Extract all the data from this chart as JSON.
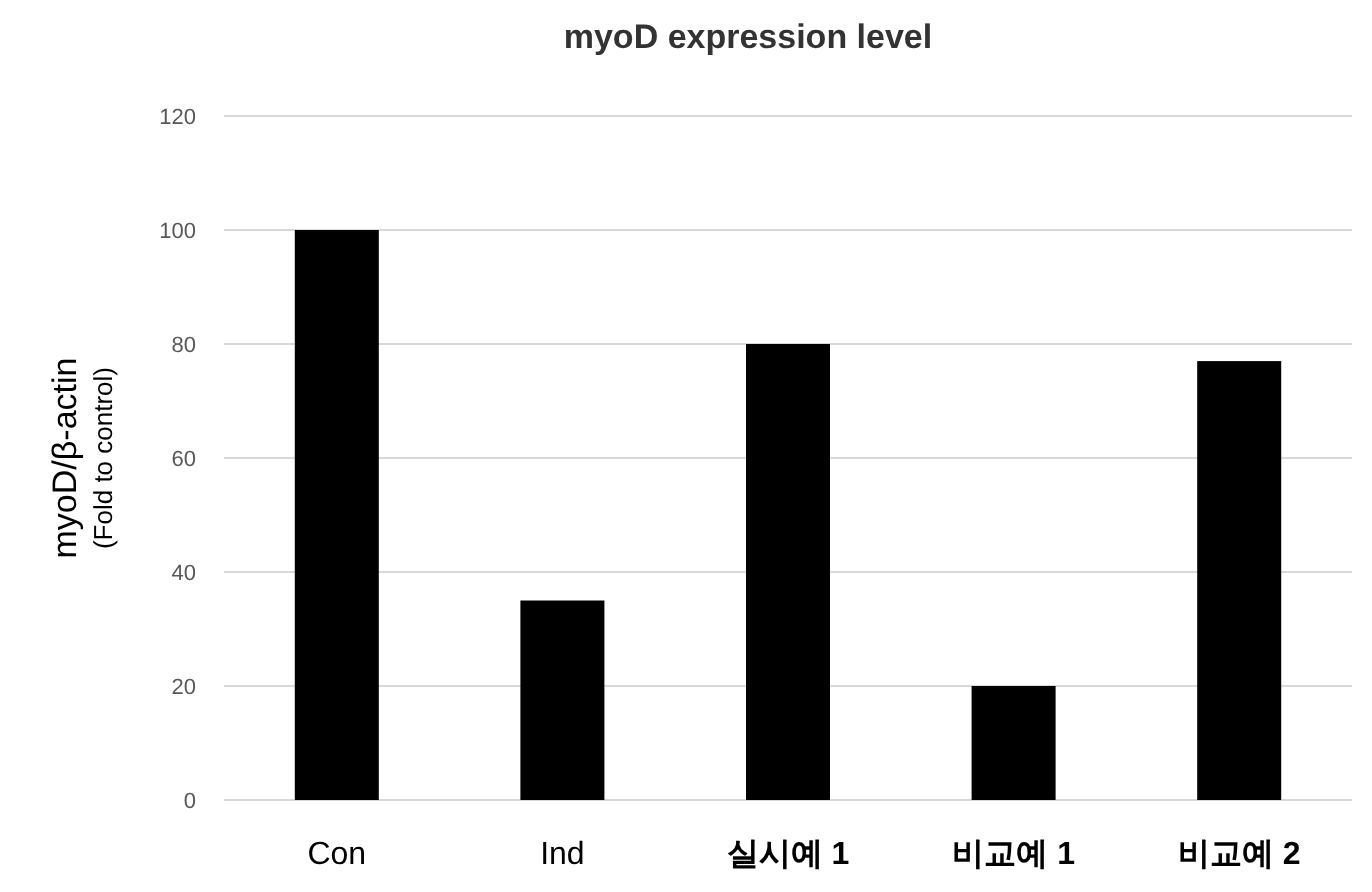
{
  "chart_data": {
    "type": "bar",
    "title": "myoD expression level",
    "ylabel": "myoD/β-actin\n(Fold to control)",
    "categories": [
      "Con",
      "Ind",
      "실시예 1",
      "비교예 1",
      "비교예 2"
    ],
    "values": [
      100,
      35,
      80,
      20,
      77
    ],
    "color": "#000000",
    "ylim": [
      0,
      120
    ],
    "yticks": [
      0,
      20,
      40,
      60,
      80,
      100,
      120
    ],
    "grid": "y"
  }
}
